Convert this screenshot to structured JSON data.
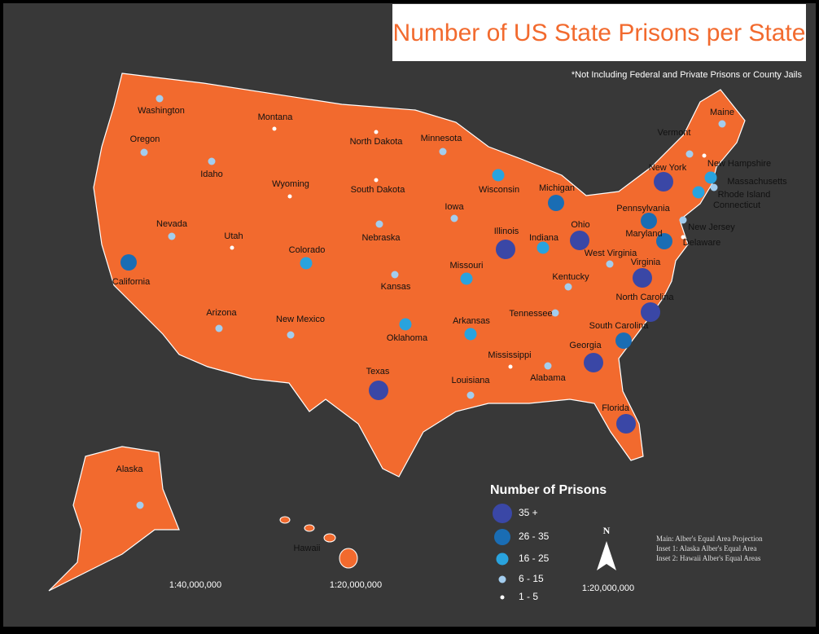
{
  "title": "Number of US State Prisons per State",
  "note": "*Not Including Federal and Private Prisons or County Jails",
  "legend": {
    "title": "Number of Prisons",
    "classes": [
      {
        "label": "35 +",
        "color": "#3a47a6"
      },
      {
        "label": "26 - 35",
        "color": "#1a6db4"
      },
      {
        "label": "16 - 25",
        "color": "#29a3de"
      },
      {
        "label": "6 - 15",
        "color": "#a3cdee"
      },
      {
        "label": "1 - 5",
        "color": "#ffffff"
      }
    ]
  },
  "states": [
    {
      "name": "Washington",
      "class": "6 - 15"
    },
    {
      "name": "Oregon",
      "class": "6 - 15"
    },
    {
      "name": "California",
      "class": "26 - 35"
    },
    {
      "name": "Nevada",
      "class": "6 - 15"
    },
    {
      "name": "Idaho",
      "class": "6 - 15"
    },
    {
      "name": "Montana",
      "class": "1 - 5"
    },
    {
      "name": "Wyoming",
      "class": "1 - 5"
    },
    {
      "name": "Utah",
      "class": "1 - 5"
    },
    {
      "name": "Colorado",
      "class": "16 - 25"
    },
    {
      "name": "Arizona",
      "class": "6 - 15"
    },
    {
      "name": "New Mexico",
      "class": "6 - 15"
    },
    {
      "name": "North Dakota",
      "class": "1 - 5"
    },
    {
      "name": "South Dakota",
      "class": "1 - 5"
    },
    {
      "name": "Nebraska",
      "class": "6 - 15"
    },
    {
      "name": "Kansas",
      "class": "6 - 15"
    },
    {
      "name": "Oklahoma",
      "class": "16 - 25"
    },
    {
      "name": "Texas",
      "class": "35 +"
    },
    {
      "name": "Minnesota",
      "class": "6 - 15"
    },
    {
      "name": "Iowa",
      "class": "6 - 15"
    },
    {
      "name": "Missouri",
      "class": "16 - 25"
    },
    {
      "name": "Arkansas",
      "class": "16 - 25"
    },
    {
      "name": "Louisiana",
      "class": "6 - 15"
    },
    {
      "name": "Wisconsin",
      "class": "16 - 25"
    },
    {
      "name": "Illinois",
      "class": "35 +"
    },
    {
      "name": "Mississippi",
      "class": "1 - 5"
    },
    {
      "name": "Michigan",
      "class": "26 - 35"
    },
    {
      "name": "Indiana",
      "class": "16 - 25"
    },
    {
      "name": "Kentucky",
      "class": "6 - 15"
    },
    {
      "name": "Tennessee",
      "class": "6 - 15"
    },
    {
      "name": "Alabama",
      "class": "6 - 15"
    },
    {
      "name": "Ohio",
      "class": "35 +"
    },
    {
      "name": "Georgia",
      "class": "35 +"
    },
    {
      "name": "Florida",
      "class": "35 +"
    },
    {
      "name": "South Carolina",
      "class": "26 - 35"
    },
    {
      "name": "North Carolina",
      "class": "35 +"
    },
    {
      "name": "Virginia",
      "class": "35 +"
    },
    {
      "name": "West Virginia",
      "class": "6 - 15"
    },
    {
      "name": "Pennsylvania",
      "class": "26 - 35"
    },
    {
      "name": "Maryland",
      "class": "26 - 35"
    },
    {
      "name": "Delaware",
      "class": "1 - 5"
    },
    {
      "name": "New Jersey",
      "class": "6 - 15"
    },
    {
      "name": "New York",
      "class": "35 +"
    },
    {
      "name": "Vermont",
      "class": "6 - 15"
    },
    {
      "name": "New Hampshire",
      "class": "1 - 5"
    },
    {
      "name": "Maine",
      "class": "6 - 15"
    },
    {
      "name": "Massachusetts",
      "class": "16 - 25"
    },
    {
      "name": "Rhode Island",
      "class": "6 - 15"
    },
    {
      "name": "Connecticut",
      "class": "16 - 25"
    },
    {
      "name": "Alaska",
      "class": "6 - 15"
    },
    {
      "name": "Hawaii",
      "class": null
    }
  ],
  "scales": [
    "1:40,000,000",
    "1:20,000,000",
    "1:20,000,000"
  ],
  "north": "N",
  "projection": [
    "Main: Alber's Equal Area Projection",
    "Inset 1: Alaska Alber's Equal Area",
    "Inset 2: Hawaii Alber's Equal Areas"
  ]
}
